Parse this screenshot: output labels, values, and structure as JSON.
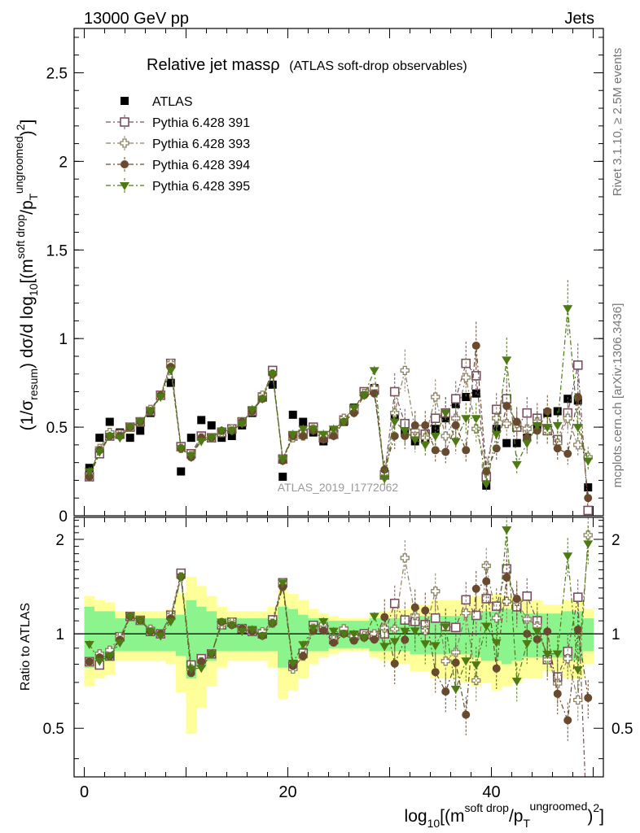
{
  "header": {
    "left": "13000 GeV pp",
    "right": "Jets",
    "side_top": "Rivet 3.1.10, ≥ 2.5M events",
    "side_bottom": "mcplots.cern.ch [arXiv:1306.3436]"
  },
  "chart_data": {
    "type": "scatter",
    "title": "Relative jet massρ",
    "title_note": "(ATLAS soft-drop observables)",
    "watermark": "ATLAS_2019_I1772062",
    "xlim": [
      -1,
      51
    ],
    "main": {
      "ylabel": "(1/σresum) dσ/d log10[(m^soft drop/pT^ungroomed)^2]",
      "ylim": [
        0,
        2.75
      ],
      "yticks": [
        0,
        0.5,
        1,
        1.5,
        2,
        2.5
      ],
      "ytick_labels": [
        "0",
        "0.5",
        "1",
        "1.5",
        "2",
        "2.5"
      ]
    },
    "ratio": {
      "ylabel": "Ratio to ATLAS",
      "ylim": [
        0.35,
        2.35
      ],
      "yticks": [
        0.5,
        1,
        2
      ],
      "ytick_labels": [
        "0.5",
        "1",
        "2"
      ]
    },
    "xticks": [
      0,
      20,
      40
    ],
    "xtick_labels": [
      "0",
      "20",
      "40"
    ],
    "xlabel": "log10[(m^soft drop/pT^ungroomed)^2]",
    "x": [
      0.5,
      1.5,
      2.5,
      3.5,
      4.5,
      5.5,
      6.5,
      7.5,
      8.5,
      9.5,
      10.5,
      11.5,
      12.5,
      13.5,
      14.5,
      15.5,
      16.5,
      17.5,
      18.5,
      19.5,
      20.5,
      21.5,
      22.5,
      23.5,
      24.5,
      25.5,
      26.5,
      27.5,
      28.5,
      29.5,
      30.5,
      31.5,
      32.5,
      33.5,
      34.5,
      35.5,
      36.5,
      37.5,
      38.5,
      39.5,
      40.5,
      41.5,
      42.5,
      43.5,
      44.5,
      45.5,
      46.5,
      47.5,
      48.5,
      49.5
    ],
    "legend": [
      "ATLAS",
      "Pythia 6.428 391",
      "Pythia 6.428 393",
      "Pythia 6.428 394",
      "Pythia 6.428 395"
    ],
    "series": [
      {
        "name": "ATLAS",
        "color": "#000000",
        "marker": "square-filled",
        "values": [
          0.27,
          0.44,
          0.53,
          0.47,
          0.44,
          0.48,
          0.58,
          0.68,
          0.75,
          0.25,
          0.44,
          0.54,
          0.51,
          0.44,
          0.45,
          0.51,
          0.58,
          0.67,
          0.74,
          0.22,
          0.57,
          0.53,
          0.47,
          0.42,
          0.48,
          0.53,
          0.61,
          0.7,
          0.72,
          0.23,
          0.56,
          0.47,
          0.42,
          0.43,
          0.49,
          0.55,
          0.63,
          0.67,
          0.69,
          0.17,
          0.49,
          0.41,
          0.41,
          0.44,
          0.5,
          0.58,
          0.59,
          0.66,
          0.65,
          0.16
        ]
      },
      {
        "name": "Pythia 6.428 391",
        "color": "#7a5060",
        "marker": "square-open",
        "values": [
          0.22,
          0.35,
          0.45,
          0.46,
          0.5,
          0.53,
          0.59,
          0.68,
          0.86,
          0.39,
          0.35,
          0.45,
          0.44,
          0.47,
          0.49,
          0.53,
          0.59,
          0.67,
          0.82,
          0.32,
          0.45,
          0.46,
          0.5,
          0.44,
          0.46,
          0.54,
          0.6,
          0.7,
          0.71,
          0.23,
          0.7,
          0.52,
          0.46,
          0.46,
          0.55,
          0.58,
          0.66,
          0.86,
          0.79,
          0.22,
          0.6,
          0.66,
          0.5,
          0.58,
          0.55,
          0.48,
          0.43,
          0.58,
          0.85,
          0.03
        ]
      },
      {
        "name": "Pythia 6.428 393",
        "color": "#8c8060",
        "marker": "cross-open",
        "values": [
          0.22,
          0.38,
          0.47,
          0.46,
          0.5,
          0.53,
          0.6,
          0.68,
          0.86,
          0.38,
          0.34,
          0.44,
          0.44,
          0.47,
          0.49,
          0.53,
          0.59,
          0.68,
          0.8,
          0.32,
          0.44,
          0.45,
          0.49,
          0.45,
          0.46,
          0.55,
          0.6,
          0.69,
          0.72,
          0.24,
          0.58,
          0.82,
          0.48,
          0.44,
          0.67,
          0.45,
          0.55,
          0.78,
          0.49,
          0.28,
          0.55,
          0.52,
          0.52,
          0.49,
          0.53,
          0.48,
          0.41,
          0.55,
          0.4,
          0.33
        ]
      },
      {
        "name": "Pythia 6.428 394",
        "color": "#6a4a2f",
        "marker": "circle-filled",
        "values": [
          0.22,
          0.37,
          0.45,
          0.45,
          0.5,
          0.53,
          0.59,
          0.68,
          0.84,
          0.38,
          0.33,
          0.44,
          0.44,
          0.48,
          0.48,
          0.53,
          0.59,
          0.66,
          0.8,
          0.31,
          0.45,
          0.45,
          0.48,
          0.43,
          0.45,
          0.53,
          0.58,
          0.68,
          0.69,
          0.26,
          0.45,
          0.45,
          0.51,
          0.51,
          0.37,
          0.36,
          0.51,
          0.37,
          0.96,
          0.25,
          0.38,
          0.62,
          0.53,
          0.44,
          0.48,
          0.59,
          0.38,
          0.35,
          0.67,
          0.1
        ]
      },
      {
        "name": "Pythia 6.428 395",
        "color": "#4d7a12",
        "marker": "triangle-filled",
        "values": [
          0.25,
          0.36,
          0.45,
          0.44,
          0.5,
          0.53,
          0.59,
          0.67,
          0.82,
          0.38,
          0.34,
          0.42,
          0.44,
          0.48,
          0.48,
          0.52,
          0.6,
          0.66,
          0.8,
          0.32,
          0.46,
          0.49,
          0.49,
          0.46,
          0.49,
          0.53,
          0.61,
          0.68,
          0.82,
          0.21,
          0.53,
          0.48,
          0.43,
          0.4,
          0.45,
          0.58,
          0.42,
          0.55,
          0.55,
          0.18,
          0.46,
          0.88,
          0.29,
          0.41,
          0.51,
          0.5,
          0.51,
          1.17,
          0.5,
          0.31
        ]
      }
    ],
    "bands": {
      "inner": [
        0.22,
        0.18,
        0.18,
        0.12,
        0.12,
        0.12,
        0.12,
        0.12,
        0.12,
        0.15,
        0.28,
        0.22,
        0.18,
        0.12,
        0.12,
        0.12,
        0.12,
        0.12,
        0.12,
        0.22,
        0.2,
        0.15,
        0.12,
        0.12,
        0.1,
        0.1,
        0.1,
        0.1,
        0.12,
        0.12,
        0.12,
        0.12,
        0.14,
        0.14,
        0.14,
        0.14,
        0.14,
        0.14,
        0.16,
        0.18,
        0.18,
        0.2,
        0.18,
        0.16,
        0.16,
        0.16,
        0.16,
        0.18,
        0.18,
        0.12
      ],
      "outer": [
        0.32,
        0.28,
        0.26,
        0.18,
        0.18,
        0.18,
        0.18,
        0.18,
        0.2,
        0.35,
        0.52,
        0.42,
        0.32,
        0.22,
        0.18,
        0.18,
        0.18,
        0.18,
        0.22,
        0.38,
        0.34,
        0.28,
        0.2,
        0.16,
        0.14,
        0.12,
        0.12,
        0.12,
        0.16,
        0.18,
        0.2,
        0.2,
        0.24,
        0.24,
        0.28,
        0.28,
        0.28,
        0.3,
        0.32,
        0.3,
        0.34,
        0.32,
        0.3,
        0.28,
        0.28,
        0.24,
        0.24,
        0.28,
        0.28,
        0.2
      ]
    }
  }
}
